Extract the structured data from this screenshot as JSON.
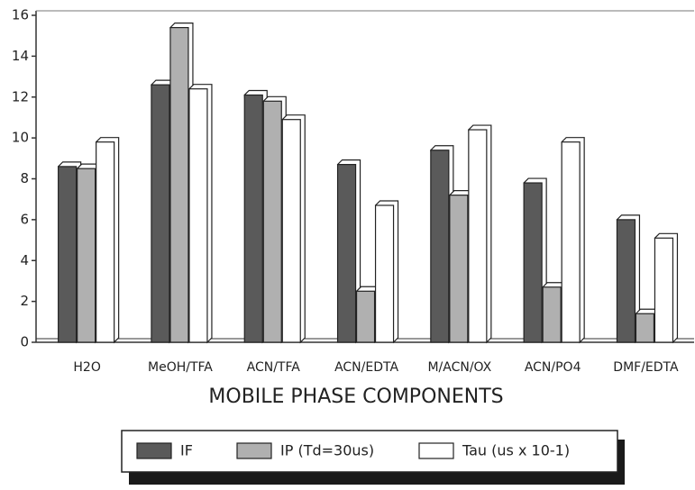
{
  "chart_data": {
    "type": "bar",
    "x_label": "MOBILE PHASE COMPONENTS",
    "categories": [
      "H2O",
      "MeOH/TFA",
      "ACN/TFA",
      "ACN/EDTA",
      "M/ACN/OX",
      "ACN/PO4",
      "DMF/EDTA"
    ],
    "series": [
      {
        "name": "IF",
        "color": "#5a5a5a",
        "values": [
          8.6,
          12.6,
          12.1,
          8.7,
          9.4,
          7.8,
          6.0
        ]
      },
      {
        "name": "IP (Td=30us)",
        "color": "#b0b0b0",
        "values": [
          8.5,
          15.4,
          11.8,
          2.5,
          7.2,
          2.7,
          1.4
        ]
      },
      {
        "name": "Tau (us x 10-1)",
        "color": "#ffffff",
        "values": [
          9.8,
          12.4,
          10.9,
          6.7,
          10.4,
          9.8,
          5.1
        ]
      }
    ],
    "ylim": [
      0,
      16
    ],
    "yticks": [
      0,
      2,
      4,
      6,
      8,
      10,
      12,
      14,
      16
    ],
    "legend": "bottom"
  }
}
